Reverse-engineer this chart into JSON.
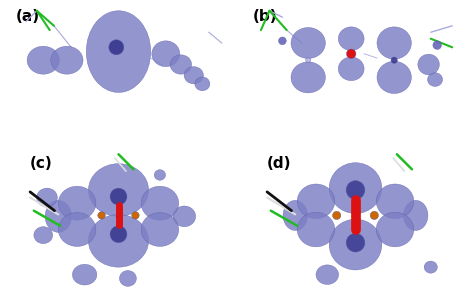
{
  "figure_width": 4.74,
  "figure_height": 3.01,
  "dpi": 100,
  "panels": [
    "(a)",
    "(b)",
    "(c)",
    "(d)"
  ],
  "background_color": "#ffffff",
  "panel_label_fontsize": 11,
  "panel_label_color": "#000000",
  "panel_label_weight": "bold",
  "blob_color_face": "#7b7fc4",
  "blob_color_edge": "#5a5aaa",
  "blob_alpha": 0.82,
  "dark_blob_color": "#3a3a90",
  "red_stick_color": "#dd1111",
  "orange_dot_color": "#cc6600",
  "green_stick_color": "#22bb22",
  "light_blue_stick": "#aaaadd"
}
